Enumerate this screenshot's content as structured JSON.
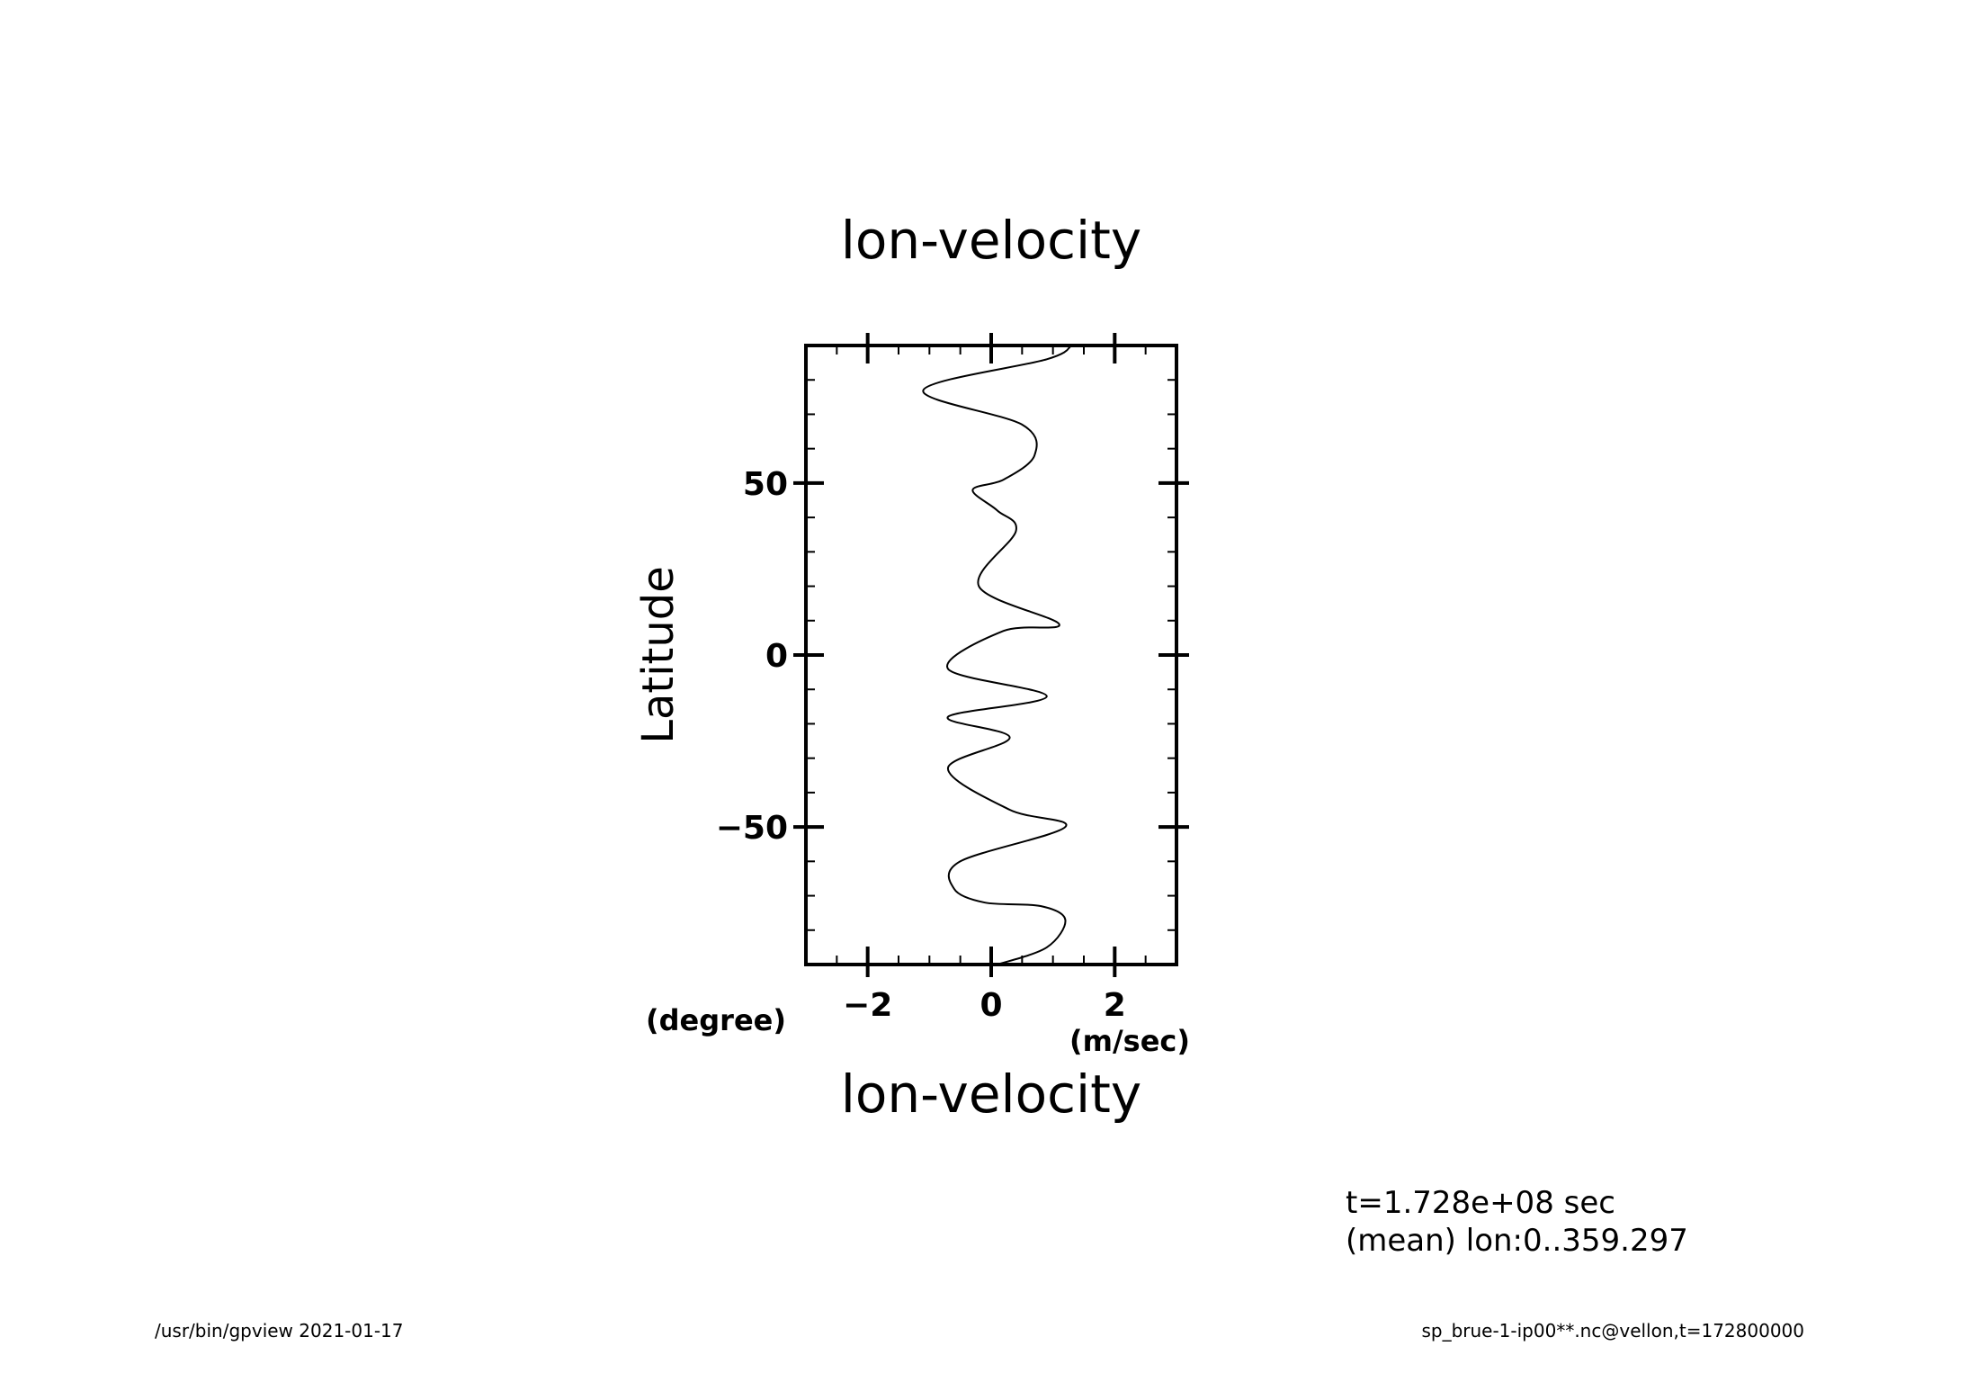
{
  "chart_data": {
    "type": "line",
    "title": "lon-velocity",
    "xlabel": "lon-velocity",
    "xunit": "(m/sec)",
    "ylabel": "Latitude",
    "yunit": "(degree)",
    "xlim": [
      -3,
      3
    ],
    "ylim": [
      -90,
      90
    ],
    "xticks": [
      -2,
      0,
      2
    ],
    "xtick_labels": [
      "−2",
      "0",
      "2"
    ],
    "yticks": [
      -50,
      0,
      50
    ],
    "ytick_labels": [
      "−50",
      "0",
      "50"
    ],
    "grid": false,
    "series": [
      {
        "x": [
          0.1,
          0.9,
          1.2,
          0.8,
          -0.1,
          -0.6,
          -0.5,
          1.2,
          0.3,
          -0.7,
          0.3,
          -0.7,
          0.9,
          -0.7,
          0.2,
          1.1,
          -0.2,
          0.4,
          0.1,
          -0.3,
          0.2,
          0.7,
          0.5,
          -1.1,
          0.9,
          1.3
        ],
        "y": [
          -90,
          -85,
          -77,
          -73,
          -72,
          -68,
          -60,
          -50,
          -45,
          -33,
          -24,
          -18,
          -12,
          -4,
          7,
          9,
          20,
          36,
          42,
          48,
          51,
          58,
          67,
          77,
          86,
          90
        ]
      }
    ]
  },
  "info": {
    "time": "t=1.728e+08 sec",
    "mean": "(mean) lon:0..359.297"
  },
  "footer": {
    "left": "/usr/bin/gpview   2021-01-17",
    "right": "sp_brue-1-ip00**.nc@vellon,t=172800000"
  }
}
